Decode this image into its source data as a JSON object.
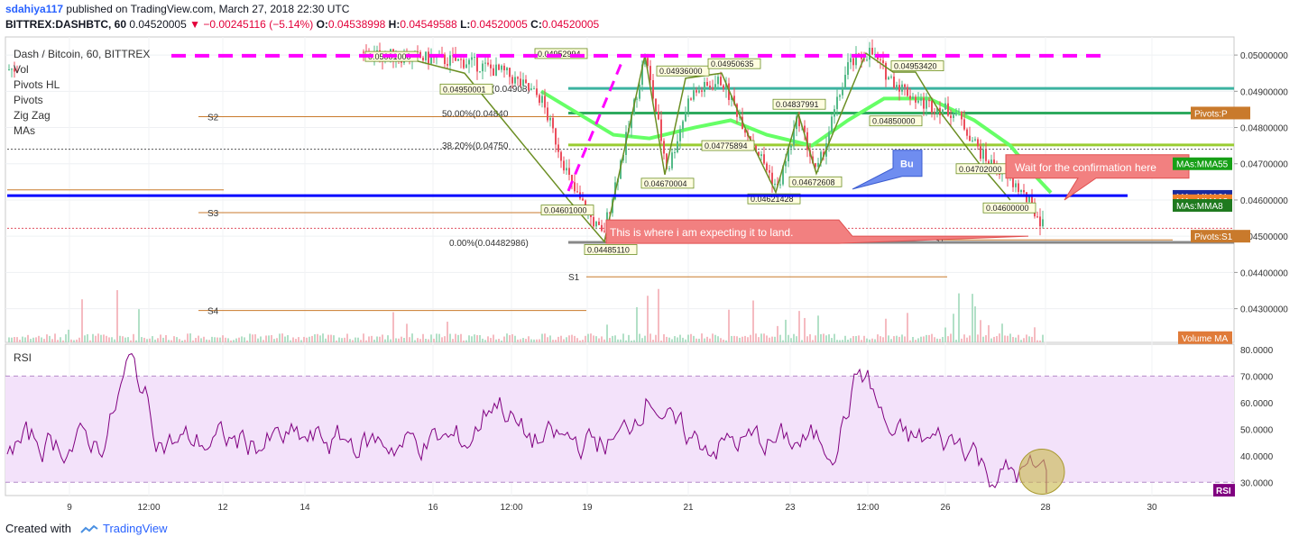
{
  "header": {
    "author": "sdahiya117",
    "published_text": "published on TradingView.com, March 27, 2018 22:30 UTC",
    "symbol": "BITTREX:DASHBTC, 60",
    "last": "0.04520005",
    "change": "−0.00245116 (−5.14%)",
    "o_label": "O:",
    "o": "0.04538998",
    "h_label": "H:",
    "h": "0.04549588",
    "l_label": "L:",
    "l": "0.04520005",
    "c_label": "C:",
    "c": "0.04520005"
  },
  "legend": {
    "title": "Dash / Bitcoin, 60, BITTREX",
    "items": [
      "Vol",
      "Pivots HL",
      "Pivots",
      "Zig Zag",
      "MAs"
    ]
  },
  "rsi_label": "RSI",
  "footer": {
    "created_with": "Created with",
    "brand": "TradingView"
  },
  "colors": {
    "up": "#53b987",
    "down": "#eb4d5c",
    "zigzag": "#6b8e23",
    "pivot_line": "#c97a2c",
    "blue_line": "#0000ff",
    "magenta": "#ff00ff",
    "ma55": "#66ff66",
    "rsi_line": "#800080",
    "rsi_band": "#f3e2fa"
  },
  "chart_data": {
    "type": "candlestick",
    "price_axis": {
      "ticks": [
        "0.05000000",
        "0.04900000",
        "0.04800000",
        "0.04700000",
        "0.04600000",
        "0.04500000",
        "0.04400000",
        "0.04300000"
      ],
      "range": [
        0.04207,
        0.0505
      ]
    },
    "time_axis": {
      "labels": [
        "9",
        "12:00",
        "12",
        "14",
        "16",
        "12:00",
        "19",
        "21",
        "23",
        "12:00",
        "26",
        "28",
        "30"
      ]
    },
    "zigzag_labels": [
      "0.05001000",
      "0.04950001",
      "0.04952994",
      "0.04936000",
      "0.04950635",
      "0.04953420",
      "0.04837991",
      "0.04850000",
      "0.04775894",
      "0.04702000",
      "0.04670004",
      "0.04672608",
      "0.04621428",
      "0.04601000",
      "0.04600000",
      "0.04485110"
    ],
    "fib_labels": [
      "0.00%(0.04482986)",
      "38.20%(0.04750",
      "50.00%(0.04840",
      "(0.04908)"
    ],
    "fib_zero_price": 0.04482986,
    "pivot_level_labels": [
      "S2",
      "S3",
      "S4",
      "S1",
      "S1"
    ],
    "price_tags": [
      {
        "text": "Pivots:P",
        "price": 0.0484,
        "color": "#c97a2c"
      },
      {
        "text": "MAs:MMA55",
        "price": 0.047,
        "color": "#17a017"
      },
      {
        "text": "MAs:MMA21",
        "price": 0.0461,
        "color": "#1b2b9e"
      },
      {
        "text": "MAs:MMA13",
        "price": 0.04598,
        "color": "#f0812a"
      },
      {
        "text": "MAs:MMA8",
        "price": 0.04585,
        "color": "#1f7a1f"
      },
      {
        "text": "Pivots:S1",
        "price": 0.045,
        "color": "#c97a2c"
      },
      {
        "text": "Volume MA",
        "price": 0.0422,
        "color": "#e07b39"
      }
    ],
    "annotations": [
      "This is where i am expecting it to land.",
      "Wait for the confirmation here",
      "Bu"
    ],
    "rsi": {
      "ticks": [
        "80.0000",
        "70.0000",
        "60.0000",
        "50.0000",
        "40.0000",
        "30.0000"
      ],
      "range": [
        25,
        82
      ],
      "band": [
        30,
        70
      ],
      "last_label": "RSI"
    }
  }
}
